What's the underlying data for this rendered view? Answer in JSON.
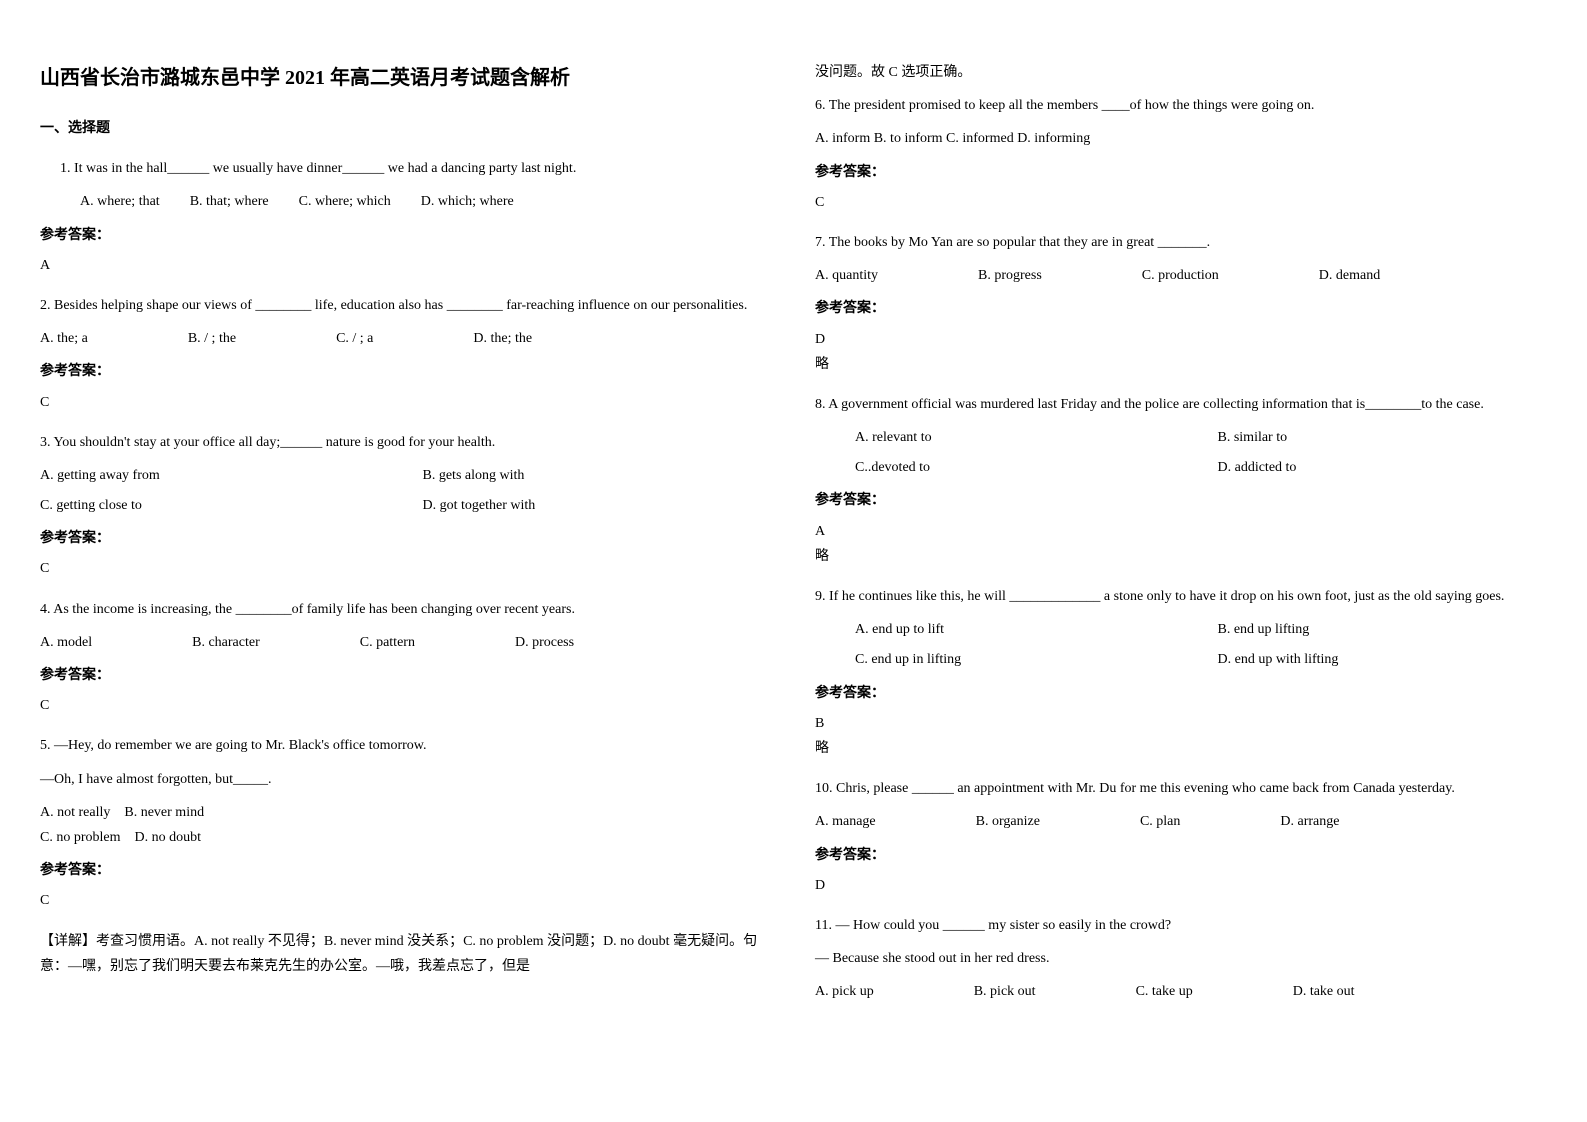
{
  "title": "山西省长治市潞城东邑中学 2021 年高二英语月考试题含解析",
  "section1": "一、选择题",
  "q1": {
    "text": "1.  It was in the hall______ we usually have dinner______ we had a dancing party last night.",
    "optA": "A. where; that",
    "optB": "B. that; where",
    "optC": "C. where; which",
    "optD": "D. which; where",
    "answerLabel": "参考答案：",
    "answer": "A"
  },
  "q2": {
    "text": "2. Besides helping shape our views of ________ life, education also has ________ far-reaching influence on our personalities.",
    "optA": "A. the; a",
    "optB": "B. / ; the",
    "optC": "C. / ; a",
    "optD": "D. the; the",
    "answerLabel": "参考答案：",
    "answer": "C"
  },
  "q3": {
    "text": "3. You shouldn't stay at your office all day;______ nature is good for your health.",
    "optA": "A. getting away from",
    "optB": "B. gets along with",
    "optC": "C. getting close to",
    "optD": "D. got together with",
    "answerLabel": "参考答案：",
    "answer": "C"
  },
  "q4": {
    "text": "4. As the income is increasing, the ________of family life has been changing over recent years.",
    "optA": "A. model",
    "optB": "B. character",
    "optC": "C. pattern",
    "optD": "D. process",
    "answerLabel": "参考答案：",
    "answer": "C"
  },
  "q5": {
    "text1": "5. —Hey, do remember we are going to Mr. Black's office tomorrow.",
    "text2": "—Oh, I have almost forgotten, but_____.",
    "optA": "A. not really",
    "optB": "B. never mind",
    "optC": "C. no problem",
    "optD": "D. no doubt",
    "answerLabel": "参考答案：",
    "answer": "C",
    "explanation": "【详解】考查习惯用语。A. not really 不见得；B. never mind 没关系；C. no problem 没问题；D. no doubt 毫无疑问。句意：—嘿，别忘了我们明天要去布莱克先生的办公室。—哦，我差点忘了，但是"
  },
  "q5cont": "没问题。故 C 选项正确。",
  "q6": {
    "text": "6. The president promised to keep all the members ____of how the things were going on.",
    "options": "A. inform B. to inform C. informed D. informing",
    "answerLabel": "参考答案：",
    "answer": "C"
  },
  "q7": {
    "text": "7. The books by Mo Yan are so popular that they are in great _______.",
    "optA": "A. quantity",
    "optB": "B. progress",
    "optC": "C. production",
    "optD": "D. demand",
    "answerLabel": "参考答案：",
    "answer": "D",
    "note": "略"
  },
  "q8": {
    "text": "8. A government official was murdered last Friday and the police are collecting information that is________to the case.",
    "optA": "A. relevant to",
    "optB": "B. similar to",
    "optC": "C..devoted to",
    "optD": "D. addicted to",
    "answerLabel": "参考答案：",
    "answer": "A",
    "note": "略"
  },
  "q9": {
    "text": "9. If he continues like this, he will _____________ a stone only to have it drop on his own foot, just as the old saying goes.",
    "optA": "A. end up to lift",
    "optB": "B. end up lifting",
    "optC": "C. end up in lifting",
    "optD": "D. end up with lifting",
    "answerLabel": "参考答案：",
    "answer": "B",
    "note": "略"
  },
  "q10": {
    "text": "10. Chris, please ______ an appointment with Mr. Du for me this evening who came back from Canada yesterday.",
    "optA": "A. manage",
    "optB": "B. organize",
    "optC": "C. plan",
    "optD": "D. arrange",
    "answerLabel": "参考答案：",
    "answer": "D"
  },
  "q11": {
    "text1": "11. — How could you ______ my sister so easily in the crowd?",
    "text2": "— Because she stood out in her red dress.",
    "optA": "A. pick up",
    "optB": "B. pick out",
    "optC": "C. take up",
    "optD": "D. take out"
  }
}
